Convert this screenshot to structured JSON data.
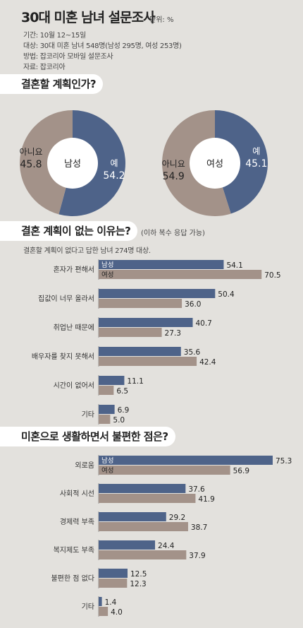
{
  "header": {
    "title": "30대 미혼 남녀 설문조사",
    "unit": "단위: %",
    "period": "기간: 10월 12~15일",
    "target": "대상: 30대 미혼 남녀 548명(남성 295명, 여성 253명)",
    "method": "방법: 잡코리아 모바일 설문조사",
    "source": "자료: 잡코리아"
  },
  "colors": {
    "male": "#4e6389",
    "female": "#a39289",
    "background": "#e3e1dd"
  },
  "section1": {
    "title": "결혼할 계획인가?"
  },
  "section2": {
    "title": "결혼 계획이 없는 이유는?",
    "note": "(이하 복수 응답 가능)",
    "sub": "결혼할 계획이 없다고 답한 남녀 274명 대상."
  },
  "section3": {
    "title": "미혼으로 생활하면서 불편한 점은?"
  },
  "chart_data": [
    {
      "type": "pie",
      "center_label": "남성",
      "slices": [
        {
          "label": "예",
          "value": 54.2,
          "color": "#4e6389"
        },
        {
          "label": "아니요",
          "value": 45.8,
          "color": "#a39289"
        }
      ]
    },
    {
      "type": "pie",
      "center_label": "여성",
      "slices": [
        {
          "label": "예",
          "value": 45.1,
          "color": "#4e6389"
        },
        {
          "label": "아니요",
          "value": 54.9,
          "color": "#a39289"
        }
      ]
    },
    {
      "type": "bar",
      "orientation": "horizontal",
      "categories": [
        "혼자가 편해서",
        "집값이 너무 올라서",
        "취업난 때문에",
        "배우자를 찾지 못해서",
        "시간이 없어서",
        "기타"
      ],
      "series": [
        {
          "name": "남성",
          "values": [
            54.1,
            50.4,
            40.7,
            35.6,
            11.1,
            6.9
          ]
        },
        {
          "name": "여성",
          "values": [
            70.5,
            36.0,
            27.3,
            42.4,
            6.5,
            5.0
          ]
        }
      ],
      "value_labels": [
        [
          "54.1",
          "50.4",
          "40.7",
          "35.6",
          "11.1",
          "6.9"
        ],
        [
          "70.5",
          "36.0",
          "27.3",
          "42.4",
          "6.5",
          "5.0"
        ]
      ],
      "xlim": [
        0,
        100
      ]
    },
    {
      "type": "bar",
      "orientation": "horizontal",
      "categories": [
        "외로움",
        "사회적 시선",
        "경제력 부족",
        "복지제도 부족",
        "불편한 점 없다",
        "기타"
      ],
      "series": [
        {
          "name": "남성",
          "values": [
            75.3,
            37.6,
            29.2,
            24.4,
            12.5,
            1.4
          ]
        },
        {
          "name": "여성",
          "values": [
            56.9,
            41.9,
            38.7,
            37.9,
            12.3,
            4.0
          ]
        }
      ],
      "value_labels": [
        [
          "75.3",
          "37.6",
          "29.2",
          "24.4",
          "12.5",
          "1.4"
        ],
        [
          "56.9",
          "41.9",
          "38.7",
          "37.9",
          "12.3",
          "4.0"
        ]
      ],
      "xlim": [
        0,
        100
      ]
    }
  ]
}
